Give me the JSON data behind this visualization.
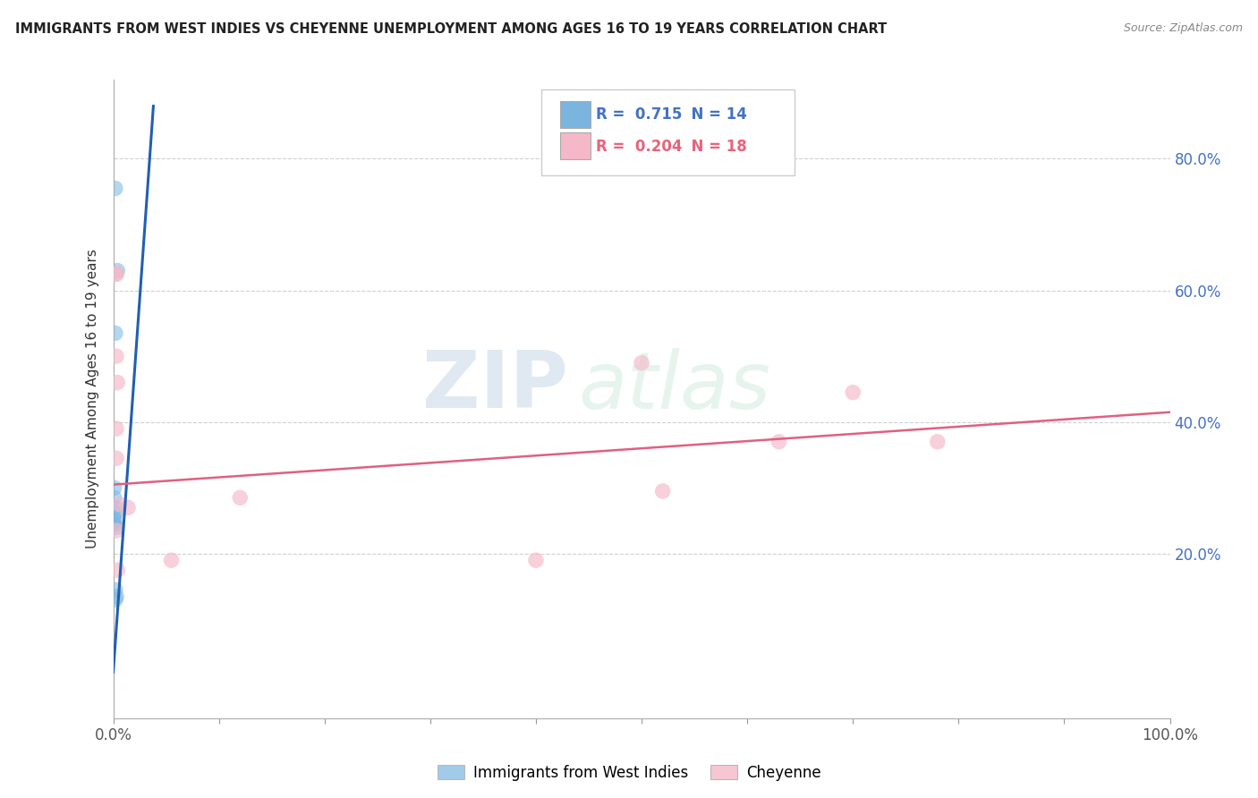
{
  "title": "IMMIGRANTS FROM WEST INDIES VS CHEYENNE UNEMPLOYMENT AMONG AGES 16 TO 19 YEARS CORRELATION CHART",
  "source": "Source: ZipAtlas.com",
  "ylabel": "Unemployment Among Ages 16 to 19 years",
  "xlim": [
    0.0,
    1.0
  ],
  "ylim": [
    -0.05,
    0.92
  ],
  "ytick_values": [
    0.2,
    0.4,
    0.6,
    0.8
  ],
  "ytick_labels": [
    "20.0%",
    "40.0%",
    "60.0%",
    "80.0%"
  ],
  "xtick_values": [
    0.0,
    0.1,
    0.2,
    0.3,
    0.4,
    0.5,
    0.6,
    0.7,
    0.8,
    0.9,
    1.0
  ],
  "xtick_label_left": "0.0%",
  "xtick_label_right": "100.0%",
  "legend_r1": "R =  0.715",
  "legend_n1": "  N = 14",
  "legend_r2": "R =  0.204",
  "legend_n2": "  N = 18",
  "legend_r1_color": "#4472c4",
  "legend_r2_color": "#e9637a",
  "legend_n_color": "#333333",
  "blue_scatter_x": [
    0.002,
    0.004,
    0.002,
    0.001,
    0.001,
    0.002,
    0.002,
    0.001,
    0.001,
    0.001,
    0.003,
    0.002,
    0.003,
    0.002
  ],
  "blue_scatter_y": [
    0.755,
    0.63,
    0.535,
    0.3,
    0.285,
    0.27,
    0.262,
    0.255,
    0.25,
    0.245,
    0.24,
    0.145,
    0.135,
    0.13
  ],
  "pink_scatter_x": [
    0.003,
    0.003,
    0.003,
    0.004,
    0.003,
    0.003,
    0.006,
    0.003,
    0.004,
    0.014,
    0.055,
    0.12,
    0.5,
    0.63,
    0.7,
    0.78,
    0.52,
    0.4
  ],
  "pink_scatter_y": [
    0.625,
    0.625,
    0.5,
    0.46,
    0.39,
    0.345,
    0.275,
    0.235,
    0.175,
    0.27,
    0.19,
    0.285,
    0.49,
    0.37,
    0.445,
    0.37,
    0.295,
    0.19
  ],
  "blue_line_x": [
    0.0,
    0.038
  ],
  "blue_line_y": [
    0.02,
    0.88
  ],
  "pink_line_x": [
    0.0,
    1.0
  ],
  "pink_line_y": [
    0.305,
    0.415
  ],
  "blue_color": "#7ab5e0",
  "blue_line_color": "#2060b0",
  "pink_color": "#f5b8c8",
  "pink_line_color": "#e06080",
  "watermark_zip": "ZIP",
  "watermark_atlas": "atlas",
  "grid_color": "#d0d0d0",
  "background_color": "#ffffff",
  "legend_box_color": "#dddddd",
  "series1_label": "Immigrants from West Indies",
  "series2_label": "Cheyenne"
}
